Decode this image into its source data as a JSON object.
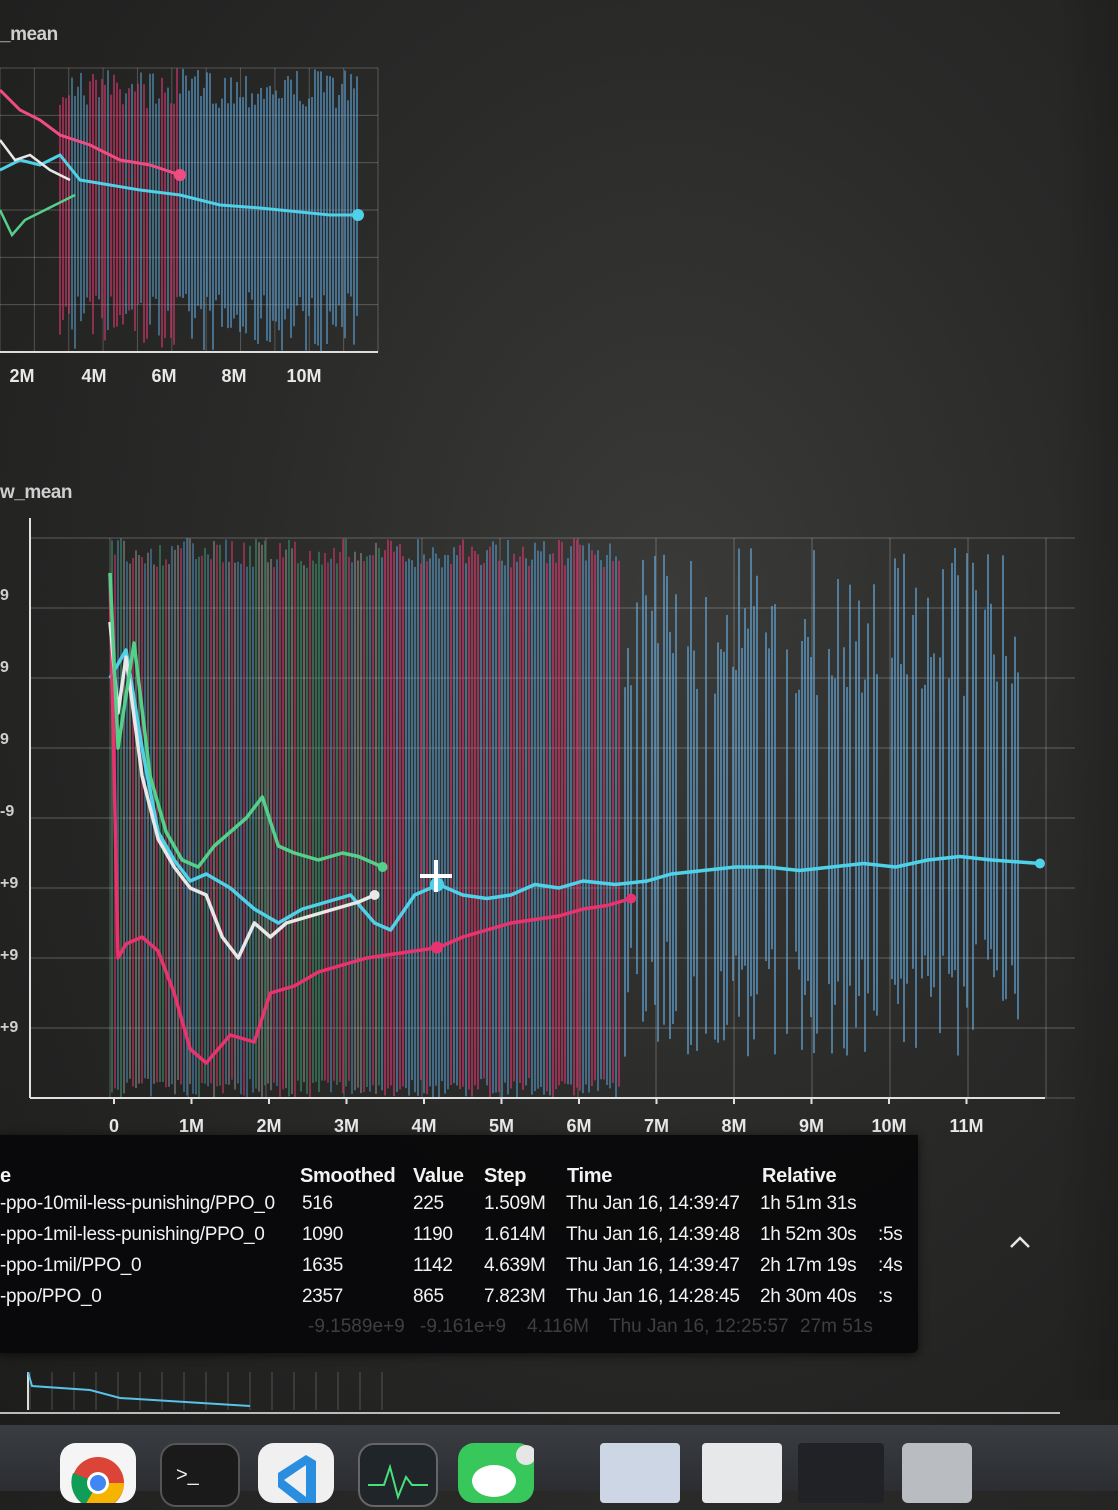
{
  "top_chart": {
    "title": "_mean",
    "x_ticks": [
      "2M",
      "4M",
      "6M",
      "8M",
      "10M"
    ]
  },
  "chart_data": {
    "type": "line",
    "title": "w_mean",
    "x_ticks": [
      "0",
      "1M",
      "2M",
      "3M",
      "4M",
      "5M",
      "6M",
      "7M",
      "8M",
      "9M",
      "10M",
      "11M"
    ],
    "y_ticks": [
      "9",
      "9",
      "9",
      "-9",
      "+9",
      "+9",
      "+9"
    ],
    "xlim": [
      0,
      11600000
    ],
    "ylim": [
      0,
      8
    ],
    "grid": true,
    "series": [
      {
        "color": "#4fd1e8",
        "x": [
          0,
          0.2,
          0.4,
          0.6,
          0.8,
          1.0,
          1.2,
          1.5,
          1.8,
          2.1,
          2.4,
          2.7,
          3.0,
          3.3,
          3.5,
          3.8,
          4.1,
          4.4,
          4.7,
          5.0,
          5.3,
          5.6,
          5.9,
          6.3,
          6.7,
          7.0,
          7.4,
          7.8,
          8.2,
          8.6,
          9.0,
          9.4,
          9.8,
          10.2,
          10.6,
          11.0,
          11.6
        ],
        "y": [
          6.0,
          6.4,
          5.0,
          3.8,
          3.4,
          3.1,
          3.2,
          3.0,
          2.7,
          2.5,
          2.7,
          2.8,
          2.9,
          2.5,
          2.4,
          2.9,
          3.05,
          2.9,
          2.85,
          2.9,
          3.05,
          3.0,
          3.1,
          3.05,
          3.1,
          3.2,
          3.25,
          3.3,
          3.3,
          3.25,
          3.3,
          3.35,
          3.3,
          3.4,
          3.45,
          3.4,
          3.35
        ]
      },
      {
        "color": "#e8336e",
        "x": [
          0,
          0.1,
          0.2,
          0.4,
          0.6,
          0.8,
          1.0,
          1.2,
          1.5,
          1.8,
          2.0,
          2.3,
          2.6,
          2.9,
          3.2,
          3.5,
          3.8,
          4.1,
          4.4,
          4.7,
          5.0,
          5.3,
          5.6,
          5.9,
          6.2,
          6.5
        ],
        "y": [
          7.5,
          2.0,
          2.2,
          2.3,
          2.1,
          1.5,
          0.7,
          0.5,
          0.9,
          0.8,
          1.5,
          1.6,
          1.8,
          1.9,
          2.0,
          2.05,
          2.1,
          2.15,
          2.3,
          2.4,
          2.5,
          2.55,
          2.6,
          2.7,
          2.75,
          2.85
        ]
      },
      {
        "color": "#e8e8e8",
        "x": [
          0,
          0.1,
          0.2,
          0.4,
          0.6,
          0.8,
          1.0,
          1.2,
          1.4,
          1.6,
          1.8,
          2.0,
          2.2,
          2.5,
          2.8,
          3.1,
          3.3
        ],
        "y": [
          6.8,
          5.5,
          6.3,
          4.6,
          3.7,
          3.3,
          3.0,
          2.9,
          2.3,
          2.0,
          2.5,
          2.3,
          2.5,
          2.6,
          2.7,
          2.8,
          2.9
        ]
      },
      {
        "color": "#55d08a",
        "x": [
          0,
          0.1,
          0.3,
          0.5,
          0.7,
          0.9,
          1.1,
          1.3,
          1.5,
          1.7,
          1.9,
          2.1,
          2.3,
          2.6,
          2.9,
          3.1,
          3.4
        ],
        "y": [
          7.5,
          5.0,
          6.5,
          4.6,
          3.8,
          3.4,
          3.3,
          3.6,
          3.8,
          4.0,
          4.3,
          3.6,
          3.5,
          3.4,
          3.5,
          3.45,
          3.3
        ]
      }
    ]
  },
  "tooltip": {
    "headers": {
      "name": "e",
      "smoothed": "Smoothed",
      "value": "Value",
      "step": "Step",
      "time": "Time",
      "relative": "Relative"
    },
    "rows": [
      {
        "name": "-ppo-10mil-less-punishing/PPO_0",
        "smoothed": "516",
        "value": "225",
        "step": "1.509M",
        "time": "Thu Jan 16, 14:39:47",
        "relative": "1h 51m 31s",
        "tail": ""
      },
      {
        "name": "-ppo-1mil-less-punishing/PPO_0",
        "smoothed": "1090",
        "value": "1190",
        "step": "1.614M",
        "time": "Thu Jan 16, 14:39:48",
        "relative": "1h 52m 30s",
        "tail": ":5s"
      },
      {
        "name": "-ppo-1mil/PPO_0",
        "smoothed": "1635",
        "value": "1142",
        "step": "4.639M",
        "time": "Thu Jan 16, 14:39:47",
        "relative": "2h 17m 19s",
        "tail": ":4s"
      },
      {
        "name": "-ppo/PPO_0",
        "smoothed": "2357",
        "value": "865",
        "step": "7.823M",
        "time": "Thu Jan 16, 14:28:45",
        "relative": "2h 30m 40s",
        "tail": ":s"
      }
    ],
    "ghost_row": {
      "smoothed": "-9.1589e+9",
      "value": "-9.161e+9",
      "step": "4.116M",
      "time": "Thu Jan 16, 12:25:57",
      "relative": "27m 51s"
    },
    "expand_icon": "chevron-up-icon"
  },
  "dock": {
    "icons": [
      "chrome-icon",
      "terminal-icon",
      "vscode-icon",
      "activity-monitor-icon",
      "messages-icon",
      "window-thumbnail-icon",
      "window-thumbnail-icon",
      "window-thumbnail-icon",
      "trash-icon"
    ]
  }
}
